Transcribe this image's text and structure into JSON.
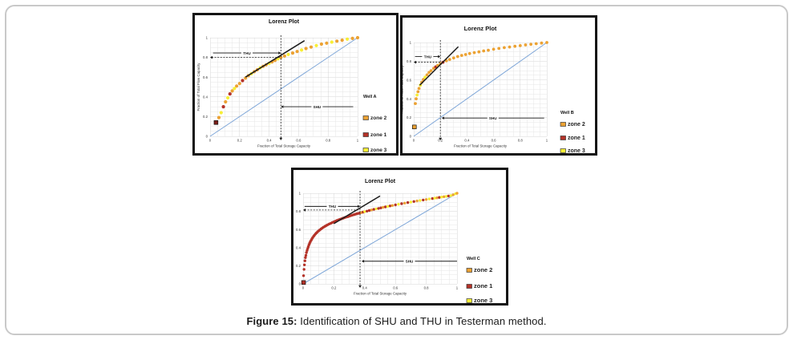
{
  "figure": {
    "caption_label": "Figure 15:",
    "caption_text": " Identification of SHU and THU in Testerman method."
  },
  "colors": {
    "z1": "#b43228",
    "z2": "#eca233",
    "z3": "#f7ef35",
    "z1dark": "#7c201b",
    "diagonal": "#7ea6d8",
    "grid_minor": "#e6e6e6",
    "grid_major": "#d4d4d4",
    "ink": "#1b1b1b",
    "swatch_border": "#3a3a3a"
  },
  "chart_data": [
    {
      "id": "well-a",
      "type": "scatter",
      "title": "Lorenz Plot",
      "xlabel": "Fraction of Total Storage Capacity",
      "ylabel": "Fraction of Total Flow Capacity",
      "xlim": [
        0,
        1
      ],
      "ylim": [
        0,
        1
      ],
      "ticks": [
        0,
        0.2,
        0.4,
        0.6,
        0.8,
        1
      ],
      "grid": true,
      "legend_title": "Well A",
      "legend": [
        {
          "label": "zone 2",
          "color_key": "z2"
        },
        {
          "label": "zone 1",
          "color_key": "z1"
        },
        {
          "label": "zone 3",
          "color_key": "z3"
        }
      ],
      "diagonal": [
        [
          0,
          0
        ],
        [
          1,
          1
        ]
      ],
      "tangent": [
        [
          0.24,
          0.6
        ],
        [
          0.64,
          0.97
        ]
      ],
      "vline_x": 0.48,
      "hline_y": 0.8,
      "thu": {
        "label": "THU",
        "y": 0.845,
        "x1": 0.02,
        "x2": 0.48
      },
      "shu": {
        "label": "SHU",
        "y": 0.3,
        "x1": 0.48,
        "x2": 0.97
      },
      "start_marker": {
        "x": 0.04,
        "y": 0.14,
        "color_key": "z1dark"
      },
      "points": [
        [
          0.06,
          0.19,
          "z2"
        ],
        [
          0.075,
          0.24,
          "z3"
        ],
        [
          0.09,
          0.3,
          "z1"
        ],
        [
          0.105,
          0.35,
          "z2"
        ],
        [
          0.12,
          0.39,
          "z3"
        ],
        [
          0.135,
          0.43,
          "z1"
        ],
        [
          0.15,
          0.46,
          "z2"
        ],
        [
          0.165,
          0.485,
          "z3"
        ],
        [
          0.18,
          0.51,
          "z2"
        ],
        [
          0.2,
          0.535,
          "z2"
        ],
        [
          0.22,
          0.565,
          "z1"
        ],
        [
          0.24,
          0.59,
          "z2"
        ],
        [
          0.26,
          0.615,
          "z2"
        ],
        [
          0.28,
          0.635,
          "z3"
        ],
        [
          0.3,
          0.655,
          "z2"
        ],
        [
          0.32,
          0.675,
          "z2"
        ],
        [
          0.34,
          0.695,
          "z3"
        ],
        [
          0.36,
          0.71,
          "z2"
        ],
        [
          0.38,
          0.725,
          "z2"
        ],
        [
          0.4,
          0.74,
          "z3"
        ],
        [
          0.42,
          0.755,
          "z2"
        ],
        [
          0.44,
          0.77,
          "z2"
        ],
        [
          0.46,
          0.785,
          "z3"
        ],
        [
          0.48,
          0.8,
          "z2"
        ],
        [
          0.505,
          0.815,
          "z2"
        ],
        [
          0.53,
          0.83,
          "z3"
        ],
        [
          0.56,
          0.845,
          "z2"
        ],
        [
          0.59,
          0.86,
          "z2"
        ],
        [
          0.62,
          0.875,
          "z3"
        ],
        [
          0.65,
          0.89,
          "z2"
        ],
        [
          0.685,
          0.905,
          "z2"
        ],
        [
          0.72,
          0.92,
          "z3"
        ],
        [
          0.755,
          0.935,
          "z2"
        ],
        [
          0.79,
          0.945,
          "z2"
        ],
        [
          0.825,
          0.955,
          "z3"
        ],
        [
          0.86,
          0.965,
          "z2"
        ],
        [
          0.895,
          0.975,
          "z2"
        ],
        [
          0.93,
          0.985,
          "z3"
        ],
        [
          0.965,
          0.993,
          "z2"
        ],
        [
          1.0,
          1.0,
          "z2"
        ]
      ]
    },
    {
      "id": "well-b",
      "type": "scatter",
      "title": "Lorenz Plot",
      "xlabel": "Fraction of Total Storage Capacity",
      "ylabel": "Fraction of Total Flow Capacity",
      "xlim": [
        0,
        1
      ],
      "ylim": [
        0,
        1
      ],
      "ticks": [
        0,
        0.2,
        0.4,
        0.6,
        0.8,
        1
      ],
      "grid": true,
      "legend_title": "Well B",
      "legend": [
        {
          "label": "zone 2",
          "color_key": "z2"
        },
        {
          "label": "zone 1",
          "color_key": "z1"
        },
        {
          "label": "zone 3",
          "color_key": "z3"
        }
      ],
      "diagonal": [
        [
          0,
          0
        ],
        [
          1,
          1
        ]
      ],
      "tangent": [
        [
          0.045,
          0.545
        ],
        [
          0.335,
          0.955
        ]
      ],
      "vline_x": 0.2,
      "hline_y": 0.79,
      "thu": {
        "label": "THU",
        "y": 0.85,
        "x1": 0.01,
        "x2": 0.2
      },
      "shu": {
        "label": "SHU",
        "y": 0.195,
        "x1": 0.21,
        "x2": 0.98
      },
      "start_marker": {
        "x": 0.005,
        "y": 0.1,
        "color_key": "z2"
      },
      "points": [
        [
          0.012,
          0.35,
          "z2"
        ],
        [
          0.018,
          0.4,
          "z2"
        ],
        [
          0.025,
          0.44,
          "z3"
        ],
        [
          0.032,
          0.475,
          "z2"
        ],
        [
          0.04,
          0.51,
          "z2"
        ],
        [
          0.05,
          0.545,
          "z3"
        ],
        [
          0.06,
          0.575,
          "z2"
        ],
        [
          0.072,
          0.605,
          "z2"
        ],
        [
          0.085,
          0.63,
          "z3"
        ],
        [
          0.1,
          0.655,
          "z2"
        ],
        [
          0.115,
          0.68,
          "z2"
        ],
        [
          0.13,
          0.7,
          "z2"
        ],
        [
          0.15,
          0.725,
          "z2"
        ],
        [
          0.165,
          0.74,
          "z1"
        ],
        [
          0.18,
          0.755,
          "z2"
        ],
        [
          0.2,
          0.775,
          "z2"
        ],
        [
          0.22,
          0.79,
          "z1"
        ],
        [
          0.245,
          0.805,
          "z2"
        ],
        [
          0.27,
          0.82,
          "z2"
        ],
        [
          0.3,
          0.835,
          "z2"
        ],
        [
          0.33,
          0.85,
          "z2"
        ],
        [
          0.36,
          0.862,
          "z2"
        ],
        [
          0.39,
          0.872,
          "z2"
        ],
        [
          0.42,
          0.882,
          "z2"
        ],
        [
          0.455,
          0.892,
          "z2"
        ],
        [
          0.49,
          0.9,
          "z2"
        ],
        [
          0.525,
          0.91,
          "z2"
        ],
        [
          0.56,
          0.918,
          "z2"
        ],
        [
          0.6,
          0.928,
          "z2"
        ],
        [
          0.64,
          0.937,
          "z2"
        ],
        [
          0.68,
          0.945,
          "z2"
        ],
        [
          0.72,
          0.952,
          "z2"
        ],
        [
          0.76,
          0.96,
          "z2"
        ],
        [
          0.8,
          0.967,
          "z2"
        ],
        [
          0.84,
          0.974,
          "z2"
        ],
        [
          0.88,
          0.98,
          "z2"
        ],
        [
          0.92,
          0.987,
          "z2"
        ],
        [
          0.96,
          0.994,
          "z2"
        ],
        [
          1.0,
          1.0,
          "z2"
        ]
      ]
    },
    {
      "id": "well-c",
      "type": "scatter",
      "title": "Lorenz Plot",
      "xlabel": "Fraction of Total Storage Capacity",
      "ylabel": "Fraction of Total Flow Capacity",
      "xlim": [
        0,
        1
      ],
      "ylim": [
        0,
        1
      ],
      "ticks": [
        0,
        0.2,
        0.4,
        0.6,
        0.8,
        1
      ],
      "grid": true,
      "legend_title": "Well C",
      "legend": [
        {
          "label": "zone 2",
          "color_key": "z2"
        },
        {
          "label": "zone 1",
          "color_key": "z1"
        },
        {
          "label": "zone 3",
          "color_key": "z3"
        }
      ],
      "diagonal": [
        [
          0,
          0
        ],
        [
          1,
          1
        ]
      ],
      "tangent": [
        [
          0.2,
          0.665
        ],
        [
          0.5,
          0.97
        ]
      ],
      "vline_x": 0.37,
      "hline_y": 0.815,
      "thu": {
        "label": "THU",
        "y": 0.855,
        "x1": 0.01,
        "x2": 0.37
      },
      "shu": {
        "label": "SHU",
        "y": 0.25,
        "x1": 0.38,
        "x2": 1.0
      },
      "start_marker": {
        "x": 0.003,
        "y": 0.015,
        "color_key": "z1"
      },
      "points": [
        [
          0.003,
          0.09,
          "z1"
        ],
        [
          0.006,
          0.16,
          "z1"
        ],
        [
          0.009,
          0.21,
          "z1"
        ],
        [
          0.012,
          0.255,
          "z1"
        ],
        [
          0.015,
          0.29,
          "z1"
        ],
        [
          0.018,
          0.315,
          "z1"
        ],
        [
          0.022,
          0.345,
          "z1"
        ],
        [
          0.026,
          0.37,
          "z1"
        ],
        [
          0.03,
          0.39,
          "z1"
        ],
        [
          0.034,
          0.41,
          "z1"
        ],
        [
          0.038,
          0.43,
          "z1"
        ],
        [
          0.042,
          0.447,
          "z1"
        ],
        [
          0.047,
          0.465,
          "z1"
        ],
        [
          0.052,
          0.48,
          "z1"
        ],
        [
          0.057,
          0.495,
          "z1"
        ],
        [
          0.062,
          0.51,
          "z1"
        ],
        [
          0.068,
          0.525,
          "z1"
        ],
        [
          0.074,
          0.537,
          "z1"
        ],
        [
          0.08,
          0.55,
          "z1"
        ],
        [
          0.087,
          0.562,
          "z1"
        ],
        [
          0.094,
          0.574,
          "z1"
        ],
        [
          0.101,
          0.585,
          "z1"
        ],
        [
          0.109,
          0.596,
          "z1"
        ],
        [
          0.117,
          0.607,
          "z1"
        ],
        [
          0.125,
          0.617,
          "z1"
        ],
        [
          0.133,
          0.626,
          "z1"
        ],
        [
          0.142,
          0.635,
          "z1"
        ],
        [
          0.151,
          0.644,
          "z1"
        ],
        [
          0.16,
          0.652,
          "z1"
        ],
        [
          0.17,
          0.661,
          "z1"
        ],
        [
          0.18,
          0.669,
          "z1"
        ],
        [
          0.19,
          0.677,
          "z1"
        ],
        [
          0.2,
          0.684,
          "z1"
        ],
        [
          0.21,
          0.692,
          "z1"
        ],
        [
          0.22,
          0.699,
          "z1"
        ],
        [
          0.23,
          0.706,
          "z1"
        ],
        [
          0.24,
          0.712,
          "z1"
        ],
        [
          0.25,
          0.719,
          "z1"
        ],
        [
          0.26,
          0.725,
          "z1"
        ],
        [
          0.27,
          0.731,
          "z1"
        ],
        [
          0.28,
          0.737,
          "z1"
        ],
        [
          0.29,
          0.742,
          "z1"
        ],
        [
          0.3,
          0.748,
          "z1"
        ],
        [
          0.31,
          0.753,
          "z1"
        ],
        [
          0.32,
          0.758,
          "z1"
        ],
        [
          0.33,
          0.764,
          "z1"
        ],
        [
          0.34,
          0.769,
          "z1"
        ],
        [
          0.35,
          0.774,
          "z1"
        ],
        [
          0.36,
          0.778,
          "z1"
        ],
        [
          0.37,
          0.783,
          "z1"
        ],
        [
          0.38,
          0.788,
          "z2"
        ],
        [
          0.39,
          0.792,
          "z1"
        ],
        [
          0.4,
          0.797,
          "z3"
        ],
        [
          0.415,
          0.803,
          "z1"
        ],
        [
          0.43,
          0.81,
          "z1"
        ],
        [
          0.445,
          0.816,
          "z2"
        ],
        [
          0.46,
          0.822,
          "z1"
        ],
        [
          0.475,
          0.828,
          "z3"
        ],
        [
          0.49,
          0.833,
          "z1"
        ],
        [
          0.505,
          0.839,
          "z1"
        ],
        [
          0.52,
          0.845,
          "z2"
        ],
        [
          0.535,
          0.85,
          "z1"
        ],
        [
          0.55,
          0.855,
          "z3"
        ],
        [
          0.565,
          0.86,
          "z1"
        ],
        [
          0.58,
          0.865,
          "z2"
        ],
        [
          0.6,
          0.872,
          "z1"
        ],
        [
          0.62,
          0.879,
          "z3"
        ],
        [
          0.64,
          0.885,
          "z1"
        ],
        [
          0.66,
          0.891,
          "z2"
        ],
        [
          0.68,
          0.897,
          "z1"
        ],
        [
          0.7,
          0.903,
          "z3"
        ],
        [
          0.72,
          0.909,
          "z1"
        ],
        [
          0.74,
          0.915,
          "z2"
        ],
        [
          0.76,
          0.92,
          "z3"
        ],
        [
          0.78,
          0.926,
          "z1"
        ],
        [
          0.8,
          0.931,
          "z2"
        ],
        [
          0.82,
          0.937,
          "z3"
        ],
        [
          0.84,
          0.942,
          "z1"
        ],
        [
          0.855,
          0.946,
          "z3"
        ],
        [
          0.87,
          0.95,
          "z2"
        ],
        [
          0.885,
          0.954,
          "z1"
        ],
        [
          0.9,
          0.958,
          "z3"
        ],
        [
          0.915,
          0.962,
          "z2"
        ],
        [
          0.93,
          0.966,
          "z3"
        ],
        [
          0.945,
          0.97,
          "z1"
        ],
        [
          0.96,
          0.974,
          "z3"
        ],
        [
          0.975,
          0.983,
          "z2"
        ],
        [
          0.99,
          0.995,
          "z3"
        ],
        [
          1.0,
          1.0,
          "z2"
        ]
      ]
    }
  ]
}
